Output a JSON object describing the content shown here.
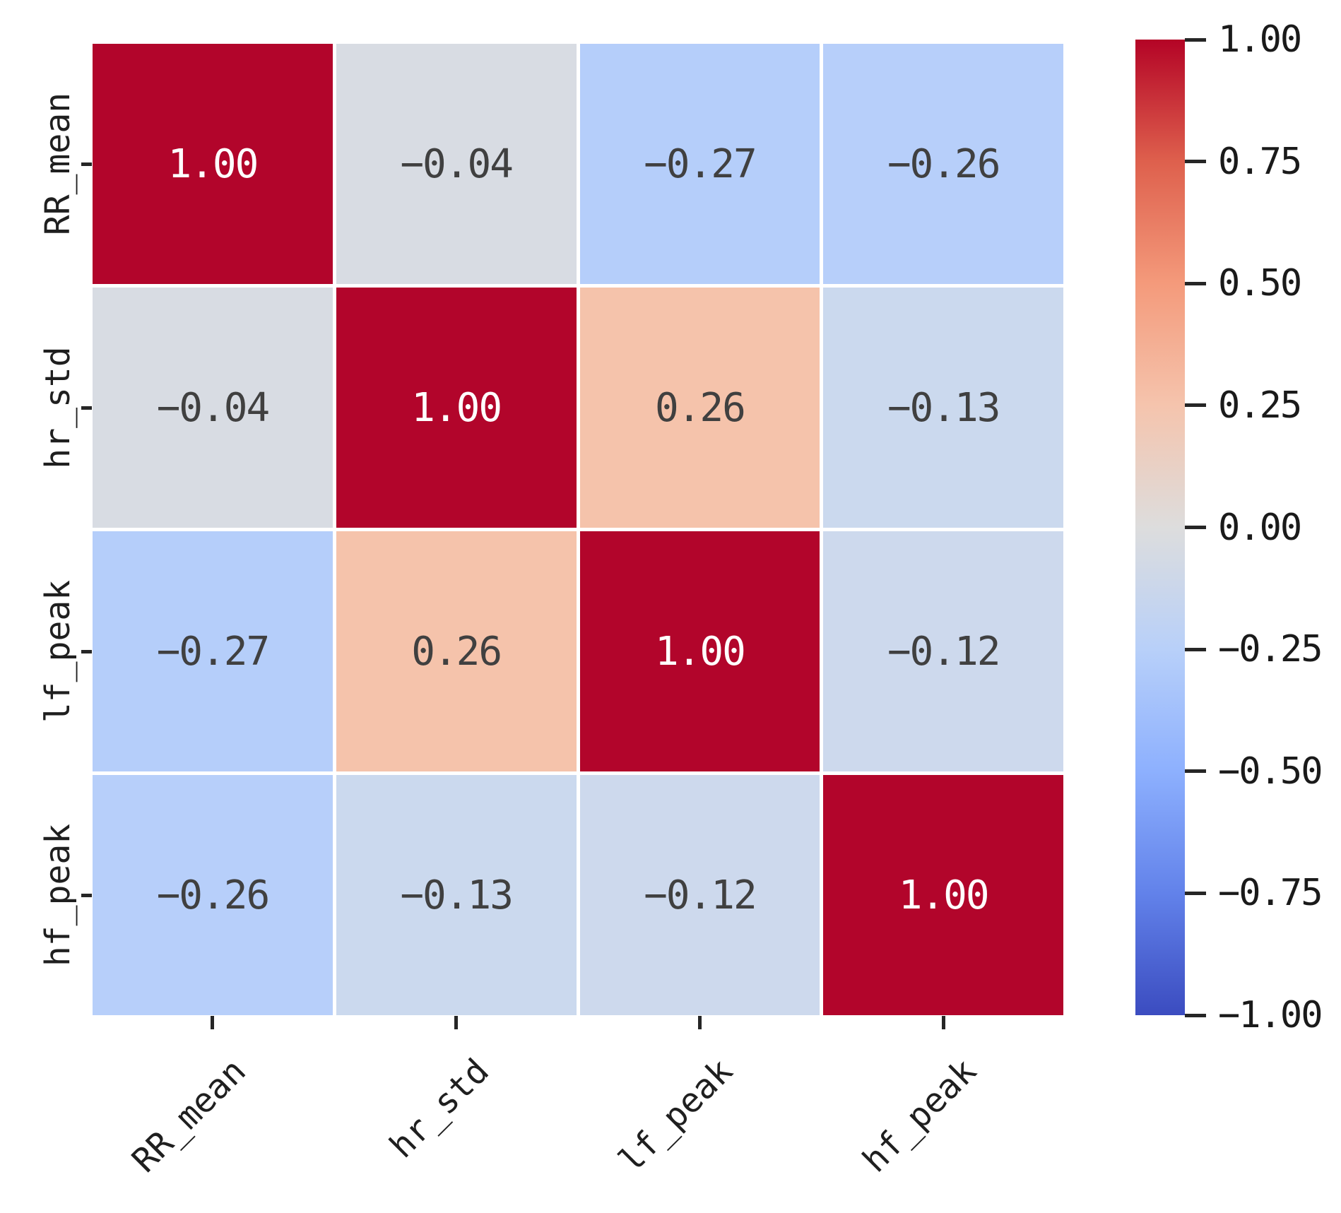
{
  "figure": {
    "background": "#ffffff"
  },
  "heatmap": {
    "row_labels": [
      "RR_mean",
      "hr_std",
      "lf_peak",
      "hf_peak"
    ],
    "col_labels": [
      "RR_mean",
      "hr_std",
      "lf_peak",
      "hf_peak"
    ],
    "annotation_dark_color": "#404040",
    "annotation_light_color": "#ffffff",
    "grid_color": "#ffffff",
    "cells": [
      {
        "row": "RR_mean",
        "col": "RR_mean",
        "value": 1.0,
        "label": "1.00",
        "bg": "#b2052b",
        "fg": "#ffffff"
      },
      {
        "row": "RR_mean",
        "col": "hr_std",
        "value": -0.04,
        "label": "-0.04",
        "bg": "#d8dce3",
        "fg": "#404040"
      },
      {
        "row": "RR_mean",
        "col": "lf_peak",
        "value": -0.27,
        "label": "-0.27",
        "bg": "#b5cefa",
        "fg": "#404040"
      },
      {
        "row": "RR_mean",
        "col": "hf_peak",
        "value": -0.26,
        "label": "-0.26",
        "bg": "#b7cffa",
        "fg": "#404040"
      },
      {
        "row": "hr_std",
        "col": "RR_mean",
        "value": -0.04,
        "label": "-0.04",
        "bg": "#d8dce3",
        "fg": "#404040"
      },
      {
        "row": "hr_std",
        "col": "hr_std",
        "value": 1.0,
        "label": "1.00",
        "bg": "#b2052b",
        "fg": "#ffffff"
      },
      {
        "row": "hr_std",
        "col": "lf_peak",
        "value": 0.26,
        "label": "0.26",
        "bg": "#f5c3ab",
        "fg": "#404040"
      },
      {
        "row": "hr_std",
        "col": "hf_peak",
        "value": -0.13,
        "label": "-0.13",
        "bg": "#cbd9ee",
        "fg": "#404040"
      },
      {
        "row": "lf_peak",
        "col": "RR_mean",
        "value": -0.27,
        "label": "-0.27",
        "bg": "#b5cefa",
        "fg": "#404040"
      },
      {
        "row": "lf_peak",
        "col": "hr_std",
        "value": 0.26,
        "label": "0.26",
        "bg": "#f5c3ab",
        "fg": "#404040"
      },
      {
        "row": "lf_peak",
        "col": "lf_peak",
        "value": 1.0,
        "label": "1.00",
        "bg": "#b2052b",
        "fg": "#ffffff"
      },
      {
        "row": "lf_peak",
        "col": "hf_peak",
        "value": -0.12,
        "label": "-0.12",
        "bg": "#cdd9ed",
        "fg": "#404040"
      },
      {
        "row": "hf_peak",
        "col": "RR_mean",
        "value": -0.26,
        "label": "-0.26",
        "bg": "#b7cffa",
        "fg": "#404040"
      },
      {
        "row": "hf_peak",
        "col": "hr_std",
        "value": -0.13,
        "label": "-0.13",
        "bg": "#cbd9ee",
        "fg": "#404040"
      },
      {
        "row": "hf_peak",
        "col": "lf_peak",
        "value": -0.12,
        "label": "-0.12",
        "bg": "#cdd9ed",
        "fg": "#404040"
      },
      {
        "row": "hf_peak",
        "col": "hf_peak",
        "value": 1.0,
        "label": "1.00",
        "bg": "#b2052b",
        "fg": "#ffffff"
      }
    ]
  },
  "colorbar": {
    "tick_labels": [
      "1.00",
      "0.75",
      "0.50",
      "0.25",
      "0.00",
      "−0.25",
      "−0.50",
      "−0.75",
      "−1.00"
    ],
    "tick_values": [
      1.0,
      0.75,
      0.5,
      0.25,
      0.0,
      -0.25,
      -0.5,
      -0.75,
      -1.0
    ],
    "gradient_stops_top_to_bottom": [
      "#b40426",
      "#de604d",
      "#f49a7b",
      "#f5c4ad",
      "#dddddd",
      "#b8d0f9",
      "#8db0fe",
      "#6282ea",
      "#3b4cc0"
    ]
  },
  "chart_data": {
    "type": "heatmap",
    "title": "",
    "xlabel": "",
    "ylabel": "",
    "categories": [
      "RR_mean",
      "hr_std",
      "lf_peak",
      "hf_peak"
    ],
    "matrix_rows": [
      "RR_mean",
      "hr_std",
      "lf_peak",
      "hf_peak"
    ],
    "matrix": [
      [
        1.0,
        -0.04,
        -0.27,
        -0.26
      ],
      [
        -0.04,
        1.0,
        0.26,
        -0.13
      ],
      [
        -0.27,
        0.26,
        1.0,
        -0.12
      ],
      [
        -0.26,
        -0.13,
        -0.12,
        1.0
      ]
    ],
    "annotations": true,
    "annotation_format": "0.00",
    "colormap": "coolwarm",
    "vmin": -1.0,
    "vmax": 1.0,
    "colorbar": true,
    "colorbar_position": "right",
    "colorbar_ticks": [
      1.0,
      0.75,
      0.5,
      0.25,
      0.0,
      -0.25,
      -0.5,
      -0.75,
      -1.0
    ],
    "grid": false,
    "x_tick_rotation_deg": 45,
    "y_tick_rotation_deg": 90
  }
}
